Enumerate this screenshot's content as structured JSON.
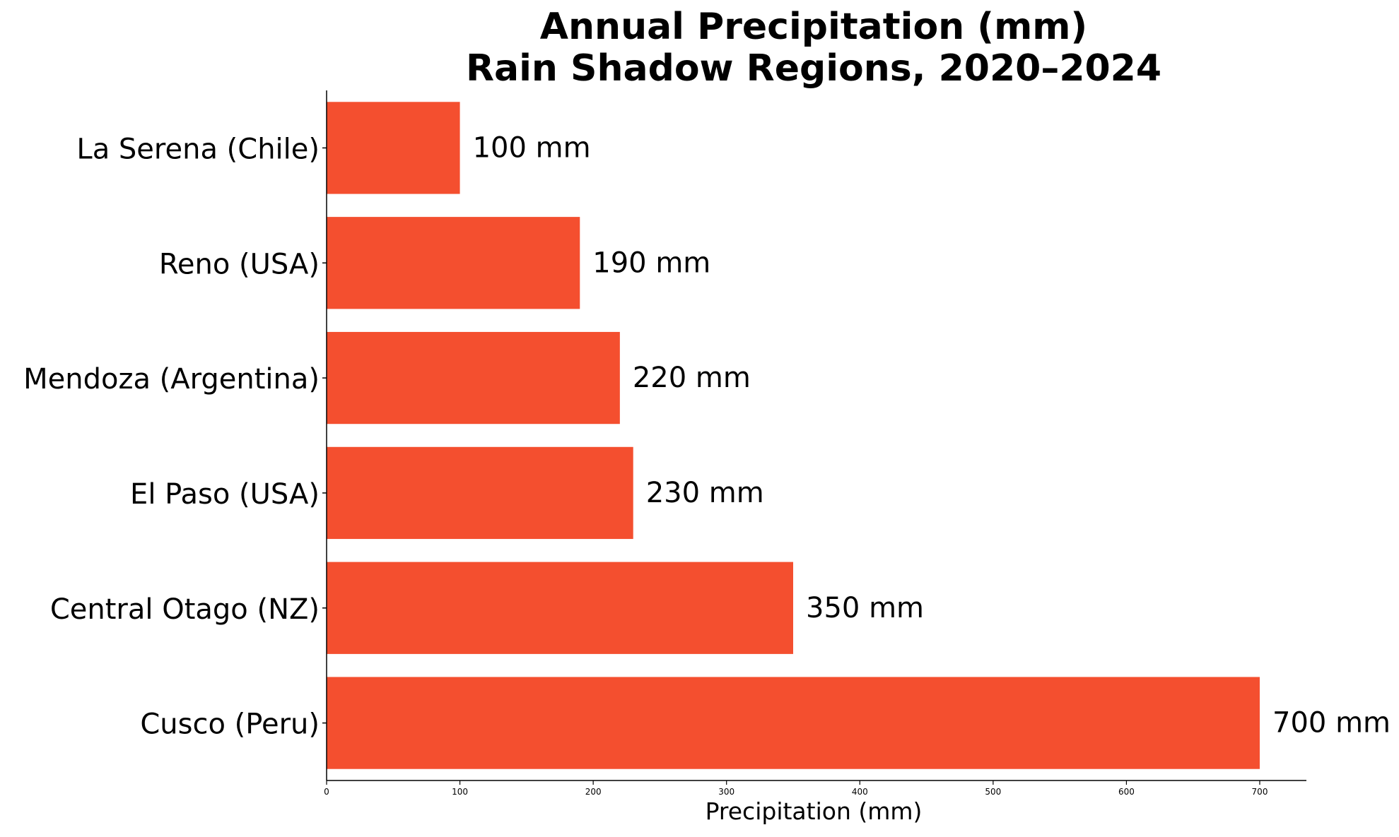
{
  "chart_data": {
    "type": "bar",
    "orientation": "horizontal",
    "title": "Annual Precipitation (mm)",
    "subtitle": "Rain Shadow Regions, 2020–2024",
    "xlabel": "Precipitation (mm)",
    "ylabel": "",
    "categories": [
      "La Serena (Chile)",
      "Reno (USA)",
      "Mendoza (Argentina)",
      "El Paso (USA)",
      "Central Otago (NZ)",
      "Cusco (Peru)"
    ],
    "values": [
      100,
      190,
      220,
      230,
      350,
      700
    ],
    "data_labels": [
      "100 mm",
      "190 mm",
      "220 mm",
      "230 mm",
      "350 mm",
      "700 mm"
    ],
    "xlim": [
      0,
      735
    ],
    "xticks": [
      0,
      100,
      200,
      300,
      400,
      500,
      600,
      700
    ],
    "xtick_labels": [
      "0",
      "100",
      "200",
      "300",
      "400",
      "500",
      "600",
      "700"
    ],
    "bar_color": "#f44f2f",
    "grid": false,
    "legend": "none"
  }
}
